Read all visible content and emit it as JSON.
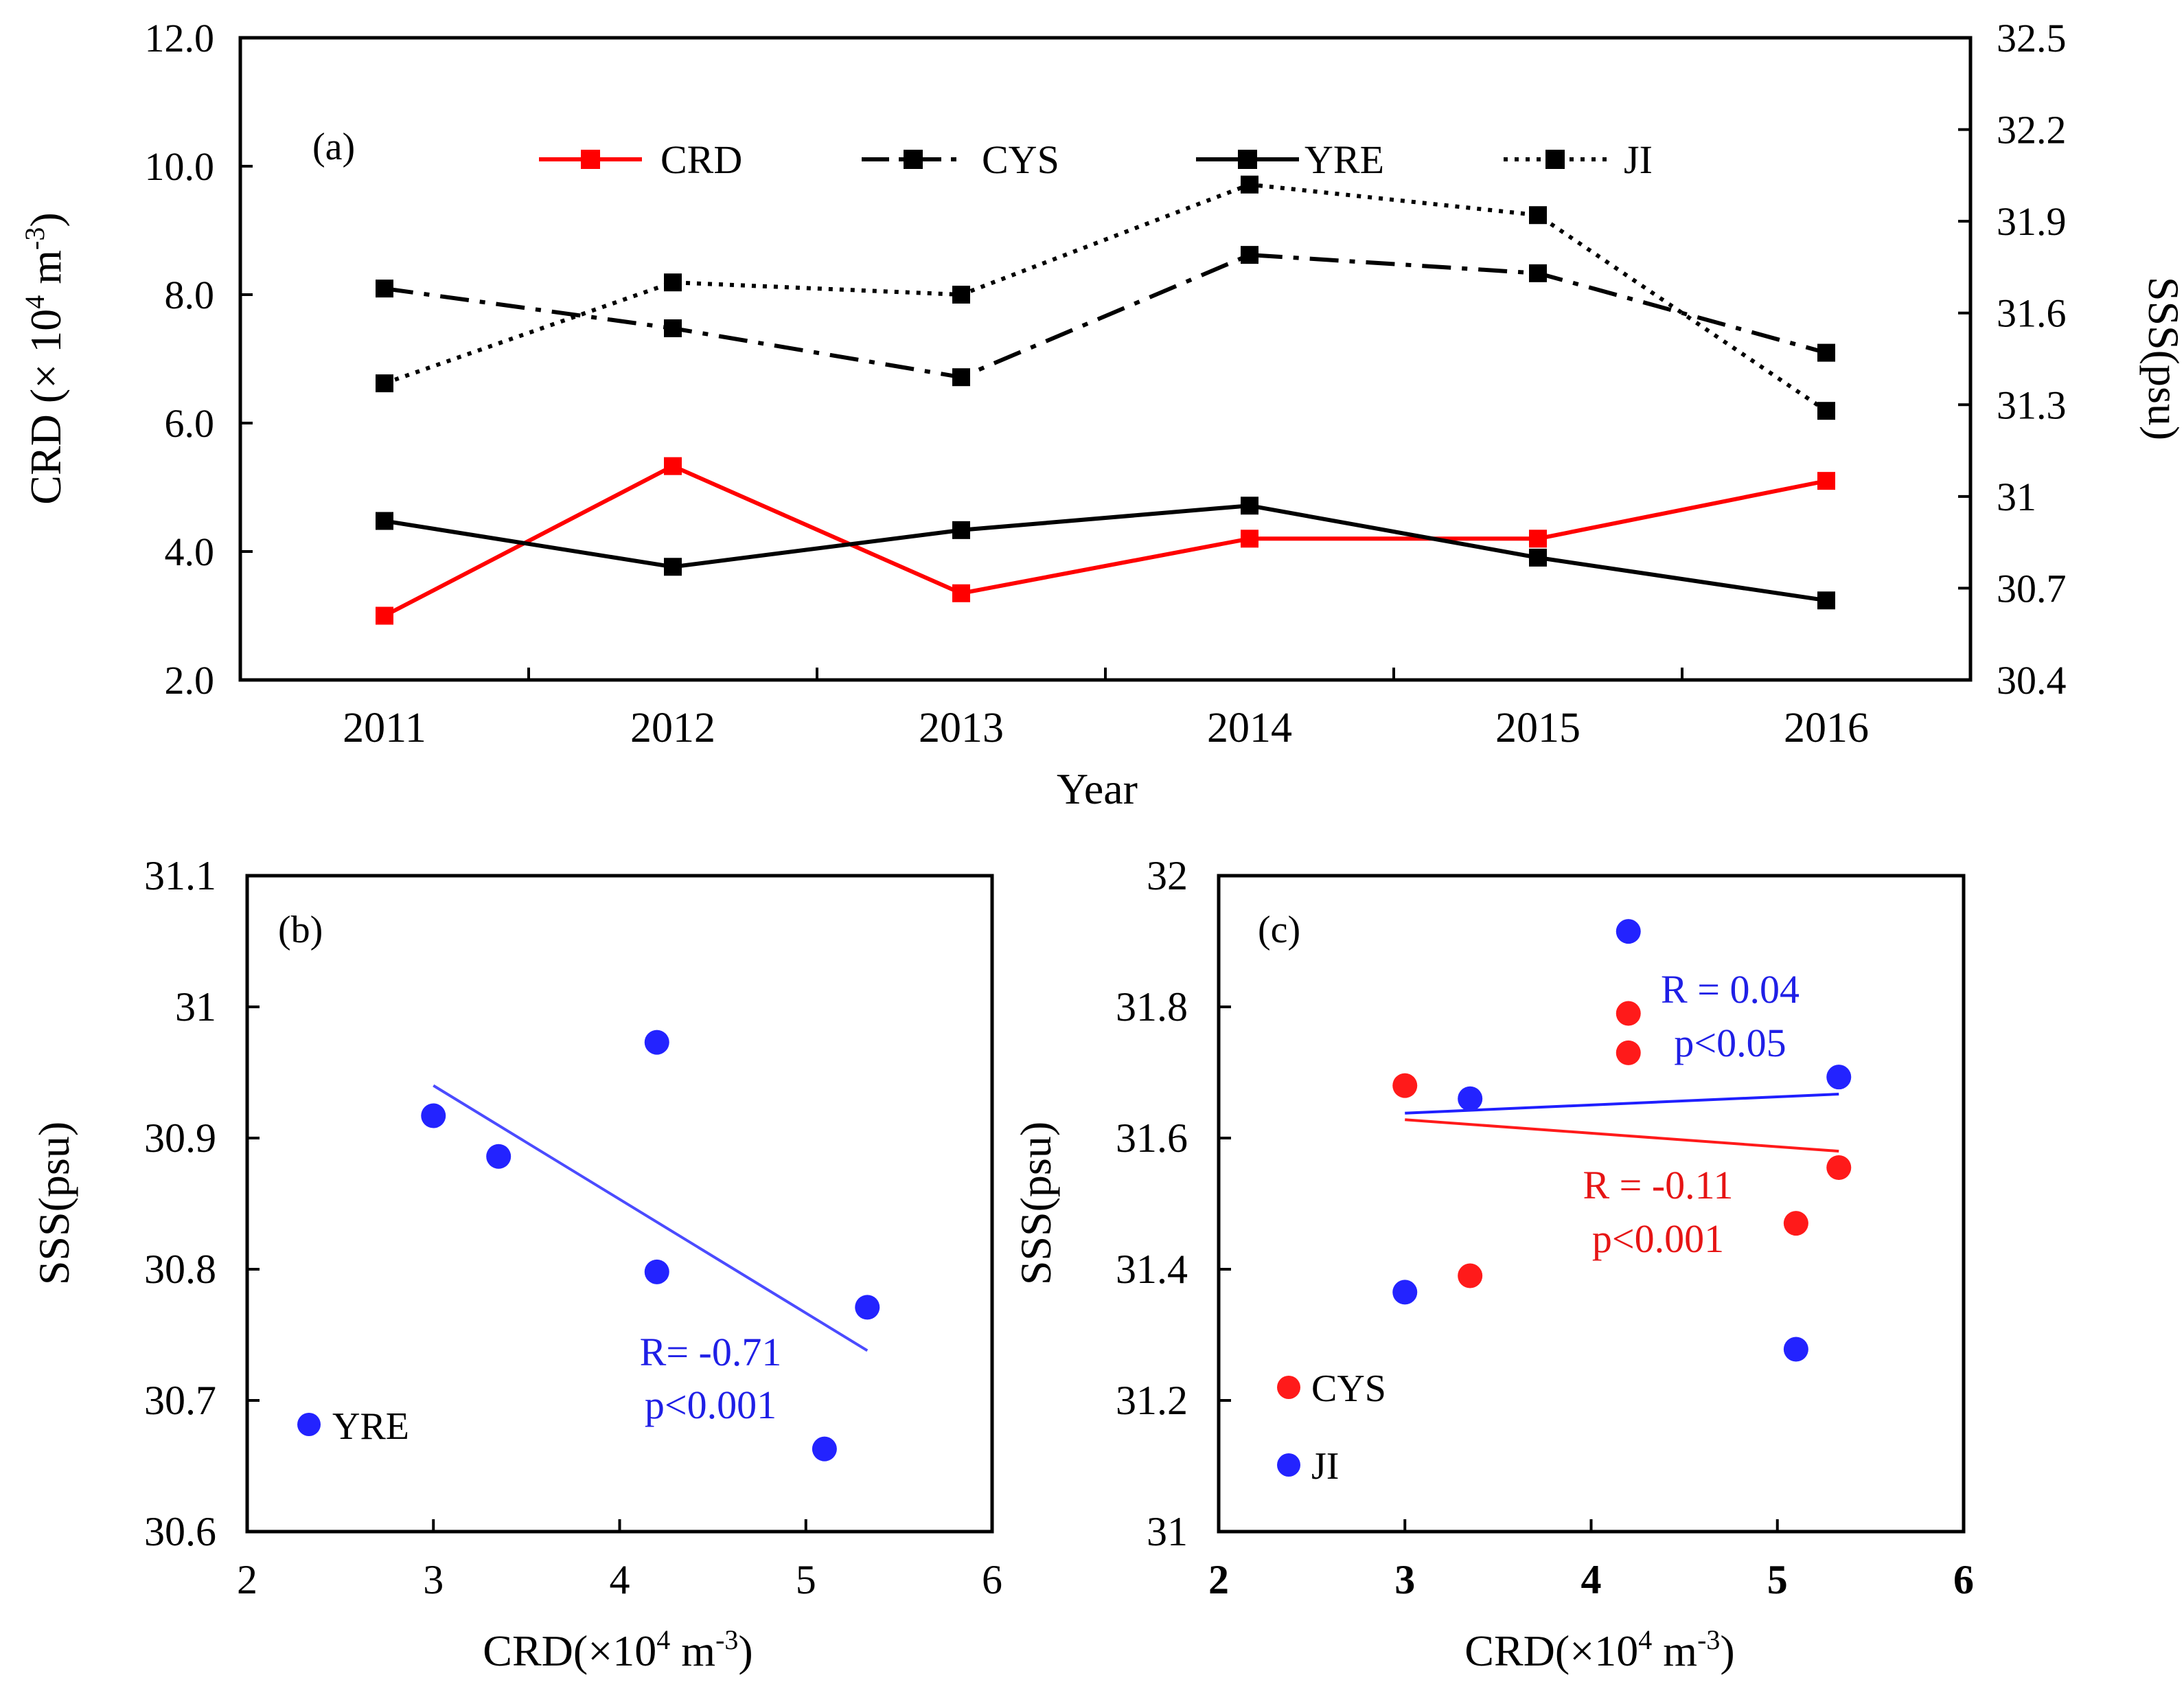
{
  "chart_data": [
    {
      "id": "a",
      "type": "line",
      "panel_label": "(a)",
      "xlabel": "Year",
      "ylabel_left": {
        "pre": "CRD (",
        "times": "×",
        "mid": " 10",
        "exp": "4",
        "unit": " m",
        "unit_exp": "-3",
        "post": ")"
      },
      "ylabel_right": "SSS(psu)",
      "categories": [
        "2011",
        "2012",
        "2013",
        "2014",
        "2015",
        "2016"
      ],
      "y_left": {
        "min": 2,
        "max": 12,
        "ticks": [
          "2.0",
          "4.0",
          "6.0",
          "8.0",
          "10.0",
          "12.0"
        ]
      },
      "y_right": {
        "min": 30.4,
        "max": 32.5,
        "ticks": [
          "30.4",
          "30.7",
          "31",
          "31.3",
          "31.6",
          "31.9",
          "32.2",
          "32.5"
        ]
      },
      "series": [
        {
          "name": "CRD",
          "axis": "left",
          "color": "#ff0000",
          "dash": "solid",
          "values": [
            3.0,
            5.33,
            3.35,
            4.2,
            4.2,
            5.1
          ]
        },
        {
          "name": "CYS",
          "axis": "right",
          "color": "#000000",
          "dash": "dashdot",
          "values": [
            31.68,
            31.55,
            31.39,
            31.79,
            31.73,
            31.47
          ]
        },
        {
          "name": "YRE",
          "axis": "right",
          "color": "#000000",
          "dash": "solid",
          "values": [
            30.92,
            30.77,
            30.89,
            30.97,
            30.8,
            30.66
          ]
        },
        {
          "name": "JI",
          "axis": "right",
          "color": "#000000",
          "dash": "dot",
          "values": [
            31.37,
            31.7,
            31.66,
            32.02,
            31.92,
            31.28
          ]
        }
      ]
    },
    {
      "id": "b",
      "type": "scatter",
      "panel_label": "(b)",
      "xlabel": {
        "pre": "CRD(",
        "times": "×",
        "mid": "10",
        "exp": "4",
        "unit": " m",
        "unit_exp": "-3",
        "post": ")"
      },
      "ylabel": "SSS(psu)",
      "xlim": [
        2,
        6
      ],
      "ylim": [
        30.6,
        31.1
      ],
      "x_ticks": [
        "2",
        "3",
        "4",
        "5",
        "6"
      ],
      "y_ticks": [
        "30.6",
        "30.7",
        "30.8",
        "30.9",
        "31",
        "31.1"
      ],
      "series": [
        {
          "name": "YRE",
          "color": "#2323ff",
          "x": [
            3.0,
            3.35,
            4.2,
            4.2,
            5.1,
            5.33
          ],
          "y": [
            30.917,
            30.886,
            30.973,
            30.798,
            30.663,
            30.771
          ]
        }
      ],
      "trendlines": [
        {
          "color": "#4b4bff",
          "x": [
            3.0,
            5.33
          ],
          "y": [
            30.94,
            30.738
          ]
        }
      ],
      "annotations": [
        {
          "text": "R= -0.71",
          "color": "#1f1fe6"
        },
        {
          "text": "p<0.001",
          "color": "#1f1fe6"
        }
      ]
    },
    {
      "id": "c",
      "type": "scatter",
      "panel_label": "(c)",
      "xlabel": {
        "pre": "CRD(",
        "times": "×",
        "mid": "10",
        "exp": "4",
        "unit": " m",
        "unit_exp": "-3",
        "post": ")"
      },
      "ylabel": "SSS(psu)",
      "xlim": [
        2,
        6
      ],
      "ylim": [
        31,
        32
      ],
      "x_ticks": [
        "2",
        "3",
        "4",
        "5",
        "6"
      ],
      "y_ticks": [
        "31",
        "31.2",
        "31.4",
        "31.6",
        "31.8",
        "32"
      ],
      "series": [
        {
          "name": "CYS",
          "color": "#ff1a1a",
          "x": [
            3.0,
            3.35,
            4.2,
            4.2,
            5.1,
            5.33
          ],
          "y": [
            31.68,
            31.39,
            31.79,
            31.73,
            31.47,
            31.555
          ]
        },
        {
          "name": "JI",
          "color": "#2323ff",
          "x": [
            3.0,
            3.35,
            4.2,
            5.1,
            5.33
          ],
          "y": [
            31.365,
            31.66,
            31.915,
            31.278,
            31.693
          ]
        }
      ],
      "trendlines": [
        {
          "color": "#1f1fff",
          "x": [
            3.0,
            5.33
          ],
          "y": [
            31.638,
            31.667
          ]
        },
        {
          "color": "#ff1a1a",
          "x": [
            3.0,
            5.33
          ],
          "y": [
            31.628,
            31.58
          ]
        }
      ],
      "annotations": [
        {
          "text": "R = 0.04",
          "color": "#1f1fe6"
        },
        {
          "text": "p<0.05",
          "color": "#1f1fe6"
        },
        {
          "text": "R = -0.11",
          "color": "#e61414"
        },
        {
          "text": "p<0.001",
          "color": "#e61414"
        }
      ]
    }
  ]
}
